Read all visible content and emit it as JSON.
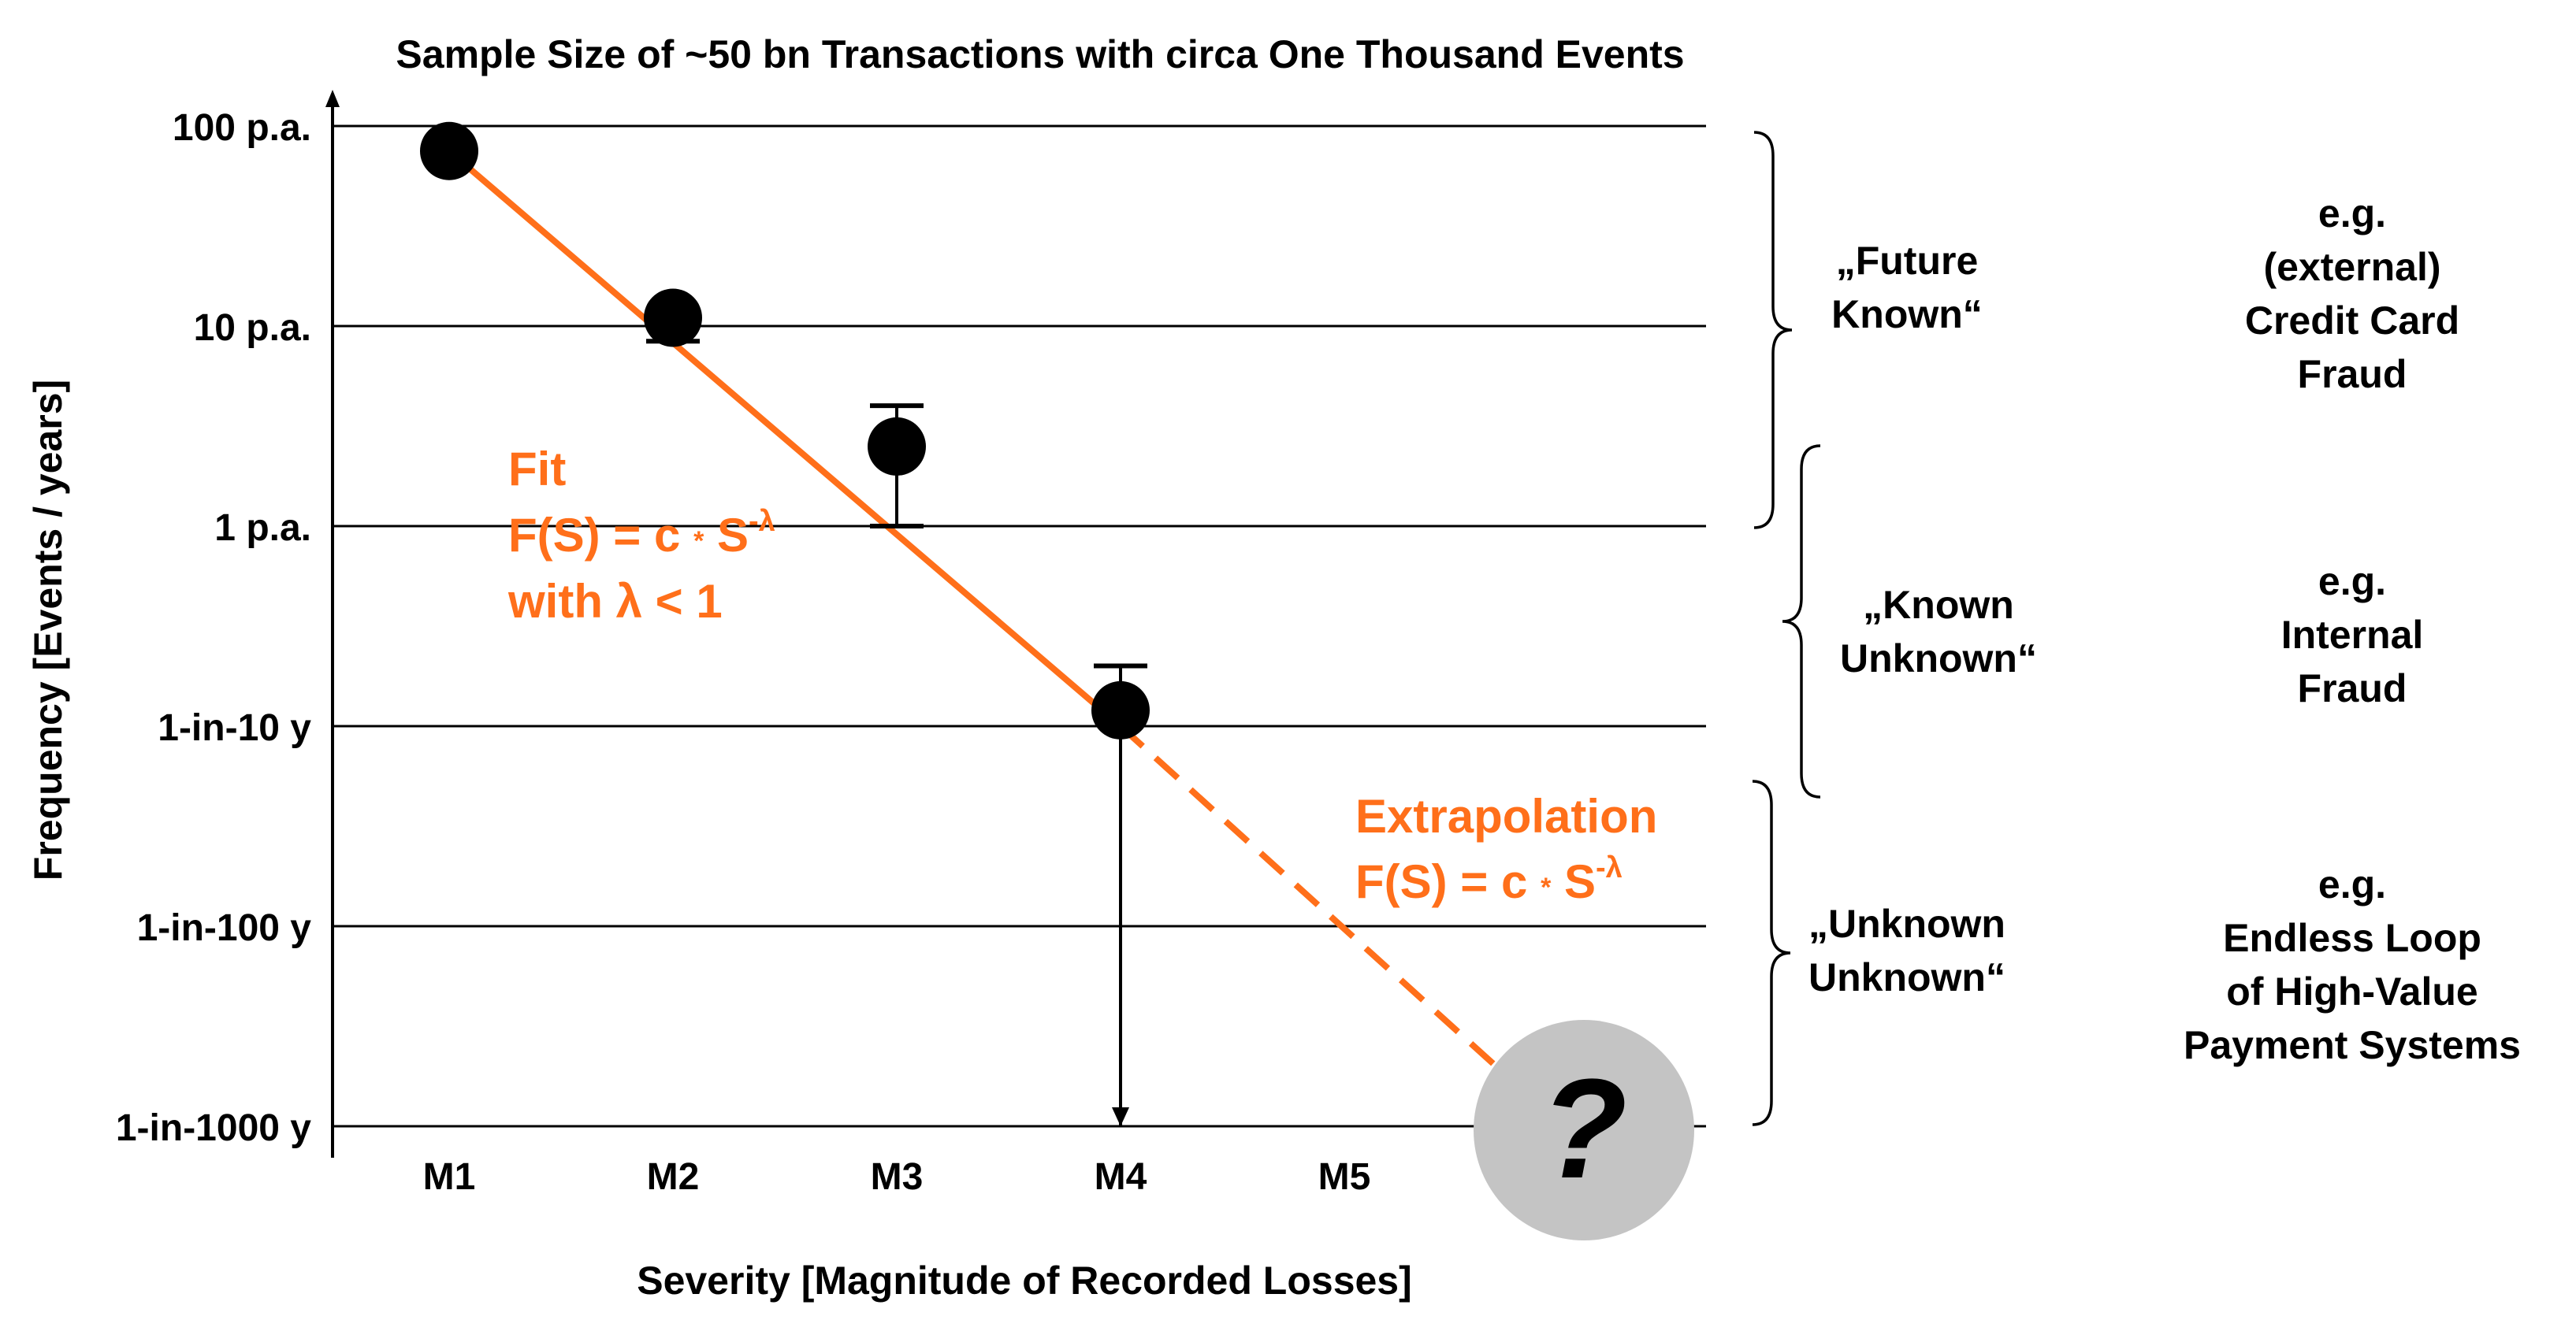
{
  "chart_data": {
    "type": "scatter",
    "title": "Sample Size of ~50 bn Transactions with circa One Thousand  Events",
    "xlabel": "Severity [Magnitude of Recorded Losses]",
    "ylabel": "Frequency [Events / years]",
    "x_categories": [
      "M1",
      "M2",
      "M3",
      "M4",
      "M5"
    ],
    "y_scale": "log10",
    "y_ticks": [
      {
        "value": 100,
        "label": "100 p.a."
      },
      {
        "value": 10,
        "label": "10 p.a."
      },
      {
        "value": 1,
        "label": "1 p.a."
      },
      {
        "value": 0.1,
        "label": "1-in-10 y"
      },
      {
        "value": 0.01,
        "label": "1-in-100 y"
      },
      {
        "value": 0.001,
        "label": "1-in-1000 y"
      }
    ],
    "grid": true,
    "points": [
      {
        "x": "M1",
        "y": 75
      },
      {
        "x": "M2",
        "y": 11
      },
      {
        "x": "M3",
        "y": 2.5,
        "err_low": 1.0,
        "err_high": 4.0
      },
      {
        "x": "M4",
        "y": 0.12,
        "err_low": 0.001,
        "err_high": 0.2
      }
    ],
    "fit_line": {
      "from": {
        "x": 1,
        "y": 75
      },
      "to": {
        "x": 4,
        "y": 0.1
      },
      "color": "#ff6f1a"
    },
    "extrapolation_line": {
      "from": {
        "x": 4,
        "y": 0.1
      },
      "to": {
        "x": 5.8,
        "y": 0.0015
      },
      "style": "dashed",
      "color": "#ff6f1a"
    },
    "annotations": {
      "fit_title": "Fit",
      "fit_formula_base": "F(S) = c ",
      "fit_formula_op": "*",
      "fit_formula_S": " S",
      "fit_exponent": "-λ",
      "fit_condition": "with λ < 1",
      "extrap_title": "Extrapolation",
      "extrap_formula_base": "F(S) = c ",
      "extrap_formula_op": "*",
      "extrap_formula_S": " S",
      "extrap_exponent": "-λ",
      "unknown_marker": "?"
    },
    "regions": [
      {
        "label_lines": [
          "„Future",
          "Known“"
        ],
        "example_lines": [
          "e.g.",
          "(external)",
          "Credit Card",
          "Fraud"
        ]
      },
      {
        "label_lines": [
          "„Known",
          "Unknown“"
        ],
        "example_lines": [
          "e.g.",
          "Internal",
          "Fraud"
        ]
      },
      {
        "label_lines": [
          "„Unknown",
          "Unknown“"
        ],
        "example_lines": [
          "e.g.",
          "Endless Loop",
          "of High-Value",
          "Payment Systems"
        ]
      }
    ],
    "colors": {
      "accent": "#ff6f1a",
      "marker": "#000000",
      "unknown_circle": "#c4c4c4",
      "grid": "#000000",
      "text": "#000000"
    }
  }
}
